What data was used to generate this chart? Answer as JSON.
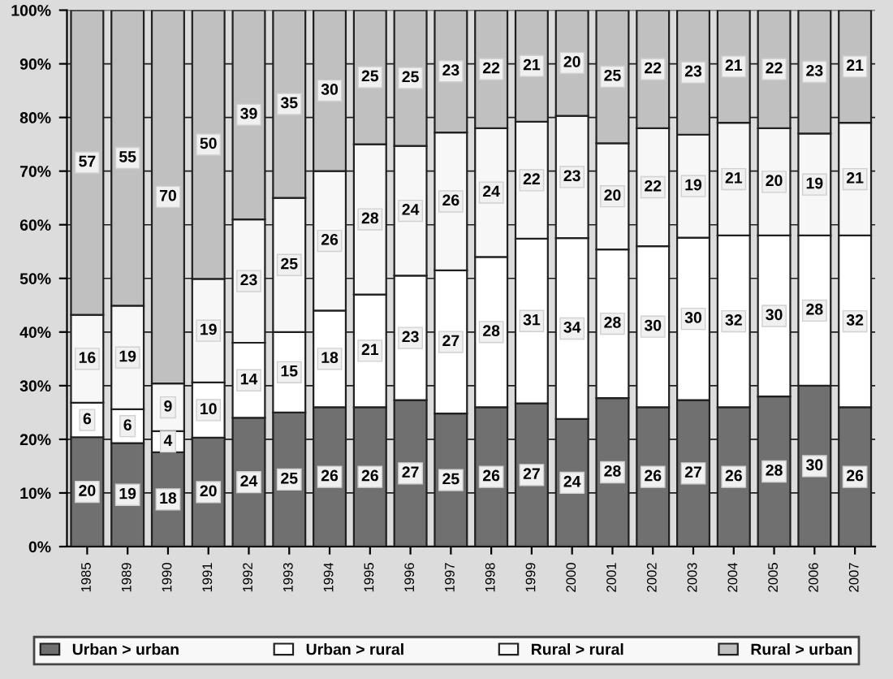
{
  "chart_data": {
    "type": "bar",
    "stacked": true,
    "categories": [
      "1985",
      "1989",
      "1990",
      "1991",
      "1992",
      "1993",
      "1994",
      "1995",
      "1996",
      "1997",
      "1998",
      "1999",
      "2000",
      "2001",
      "2002",
      "2003",
      "2004",
      "2005",
      "2006",
      "2007"
    ],
    "series": [
      {
        "name": "Urban > urban",
        "color": "#707070",
        "values": [
          20.4,
          19.3,
          17.6,
          20.3,
          24,
          25,
          26,
          26,
          27.3,
          24.8,
          26,
          26.7,
          23.8,
          27.7,
          26,
          27.3,
          26,
          28,
          30,
          26
        ],
        "value_labels": [
          "20",
          "19",
          "18",
          "20",
          "24",
          "25",
          "26",
          "26",
          "27",
          "25",
          "26",
          "27",
          "24",
          "28",
          "26",
          "27",
          "26",
          "28",
          "30",
          "26"
        ]
      },
      {
        "name": "Urban > rural",
        "color": "#ffffff",
        "values": [
          6.4,
          6.3,
          3.9,
          10.3,
          14,
          15,
          18,
          21,
          23.2,
          26.7,
          28,
          30.7,
          33.7,
          27.7,
          30,
          30.3,
          32,
          30,
          28,
          32
        ],
        "value_labels": [
          "6",
          "6",
          "4",
          "10",
          "14",
          "15",
          "18",
          "21",
          "23",
          "27",
          "28",
          "31",
          "34",
          "28",
          "30",
          "30",
          "32",
          "30",
          "28",
          "32"
        ]
      },
      {
        "name": "Rural > rural",
        "color": "#f7f7f7",
        "values": [
          16.4,
          19.3,
          8.9,
          19.3,
          23,
          25,
          26,
          28,
          24.2,
          25.7,
          24,
          21.8,
          22.8,
          19.8,
          22,
          19.2,
          21,
          20,
          19,
          21
        ],
        "value_labels": [
          "16",
          "19",
          "9",
          "19",
          "23",
          "25",
          "26",
          "28",
          "24",
          "26",
          "24",
          "22",
          "23",
          "20",
          "22",
          "19",
          "21",
          "20",
          "19",
          "21"
        ]
      },
      {
        "name": "Rural > urban",
        "color": "#c0c0c0",
        "values": [
          56.8,
          55.1,
          69.6,
          50.1,
          39,
          35,
          30,
          25,
          25.3,
          22.8,
          22,
          20.8,
          19.7,
          24.8,
          22,
          23.2,
          21,
          22,
          23,
          21
        ],
        "value_labels": [
          "57",
          "55",
          "70",
          "50",
          "39",
          "35",
          "30",
          "25",
          "25",
          "23",
          "22",
          "21",
          "20",
          "25",
          "22",
          "23",
          "21",
          "22",
          "23",
          "21"
        ]
      }
    ],
    "ylim": [
      0,
      100
    ],
    "yticks": [
      {
        "value": 0,
        "label": "0%"
      },
      {
        "value": 10,
        "label": "10%"
      },
      {
        "value": 20,
        "label": "20%"
      },
      {
        "value": 30,
        "label": "30%"
      },
      {
        "value": 40,
        "label": "40%"
      },
      {
        "value": 50,
        "label": "50%"
      },
      {
        "value": 60,
        "label": "60%"
      },
      {
        "value": 70,
        "label": "70%"
      },
      {
        "value": 80,
        "label": "80%"
      },
      {
        "value": 90,
        "label": "90%"
      },
      {
        "value": 100,
        "label": "100%"
      }
    ],
    "grid": "y",
    "legend": "bottom"
  }
}
